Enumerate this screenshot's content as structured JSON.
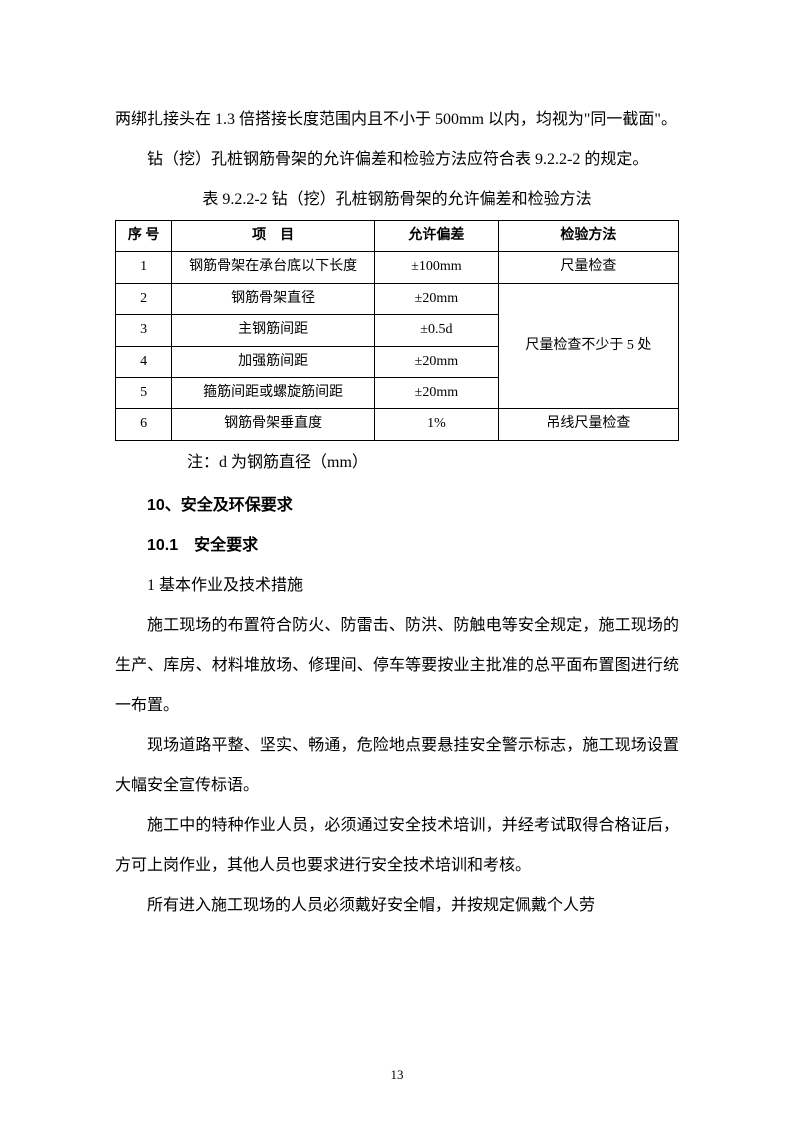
{
  "paragraphs": {
    "p1": "两绑扎接头在 1.3 倍搭接长度范围内且不小于 500mm 以内，均视为\"同一截面\"。",
    "p2": "钻（挖）孔桩钢筋骨架的允许偏差和检验方法应符合表 9.2.2-2 的规定。"
  },
  "table": {
    "caption": "表 9.2.2-2 钻（挖）孔桩钢筋骨架的允许偏差和检验方法",
    "headers": {
      "h1": "序 号",
      "h2": "项　目",
      "h3": "允许偏差",
      "h4": "检验方法"
    },
    "rows": [
      {
        "seq": "1",
        "item": "钢筋骨架在承台底以下长度",
        "tolerance": "±100mm",
        "method": "尺量检查"
      },
      {
        "seq": "2",
        "item": "钢筋骨架直径",
        "tolerance": "±20mm",
        "method": ""
      },
      {
        "seq": "3",
        "item": "主钢筋间距",
        "tolerance": "±0.5d",
        "method": ""
      },
      {
        "seq": "4",
        "item": "加强筋间距",
        "tolerance": "±20mm",
        "method": "尺量检查不少于 5 处"
      },
      {
        "seq": "5",
        "item": "箍筋间距或螺旋筋间距",
        "tolerance": "±20mm",
        "method": ""
      },
      {
        "seq": "6",
        "item": "钢筋骨架垂直度",
        "tolerance": "1%",
        "method": "吊线尺量检查"
      }
    ],
    "note": "注：d 为钢筋直径（mm）"
  },
  "headings": {
    "h10": "10、安全及环保要求",
    "h10_1": "10.1　安全要求",
    "sub1": "1 基本作业及技术措施"
  },
  "body_paragraphs": {
    "bp1": "施工现场的布置符合防火、防雷击、防洪、防触电等安全规定，施工现场的生产、库房、材料堆放场、修理间、停车等要按业主批准的总平面布置图进行统一布置。",
    "bp2": "现场道路平整、坚实、畅通，危险地点要悬挂安全警示标志，施工现场设置大幅安全宣传标语。",
    "bp3": "施工中的特种作业人员，必须通过安全技术培训，并经考试取得合格证后，方可上岗作业，其他人员也要求进行安全技术培训和考核。",
    "bp4": "所有进入施工现场的人员必须戴好安全帽，并按规定佩戴个人劳"
  },
  "page_number": "13"
}
